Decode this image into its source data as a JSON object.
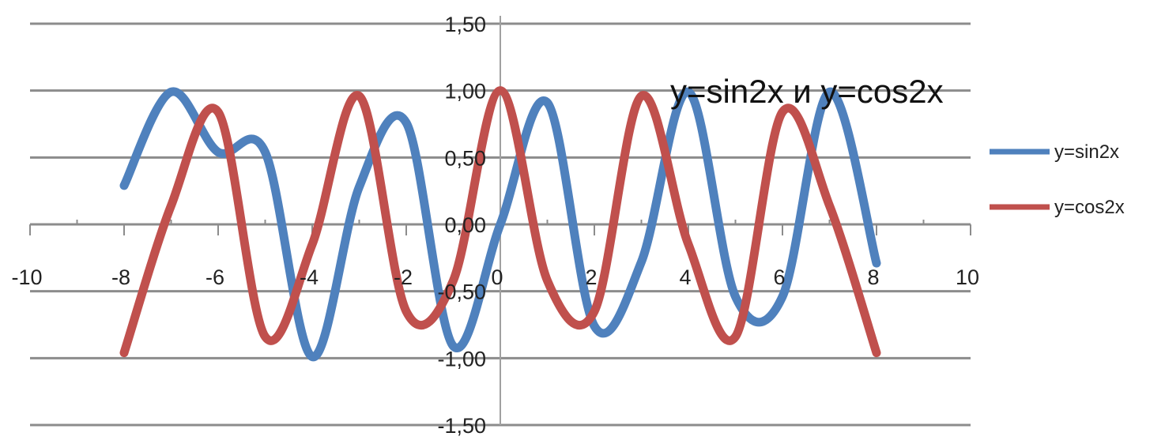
{
  "chart_data": {
    "type": "line",
    "title": "y=sin2x и y=cos2x",
    "xlabel": "",
    "ylabel": "",
    "xlim": [
      -10,
      10
    ],
    "ylim": [
      -1.5,
      1.5
    ],
    "x_ticks": [
      "-10",
      "-8",
      "-6",
      "-4",
      "-2",
      "0",
      "2",
      "4",
      "6",
      "8",
      "10"
    ],
    "y_ticks": [
      "1,50",
      "1,00",
      "0,50",
      "0,00",
      "-0,50",
      "-1,00",
      "-1,50"
    ],
    "grid": "horizontal",
    "legend": "right",
    "x": [
      -8,
      -7,
      -6,
      -5,
      -4,
      -3,
      -2,
      -1,
      0,
      1,
      2,
      3,
      4,
      5,
      6,
      7,
      8
    ],
    "series": [
      {
        "name": "y=sin2x",
        "color": "#4f81bd",
        "values": [
          0.29,
          0.99,
          0.54,
          0.54,
          -0.99,
          0.28,
          0.76,
          -0.91,
          0.0,
          0.91,
          -0.76,
          -0.28,
          0.99,
          -0.54,
          -0.54,
          0.99,
          -0.29
        ]
      },
      {
        "name": "y=cos2x",
        "color": "#c0504d",
        "values": [
          -0.96,
          0.14,
          0.84,
          -0.84,
          -0.15,
          0.96,
          -0.65,
          -0.42,
          1.0,
          -0.42,
          -0.65,
          0.96,
          -0.15,
          -0.84,
          0.84,
          0.14,
          -0.96
        ]
      }
    ]
  }
}
